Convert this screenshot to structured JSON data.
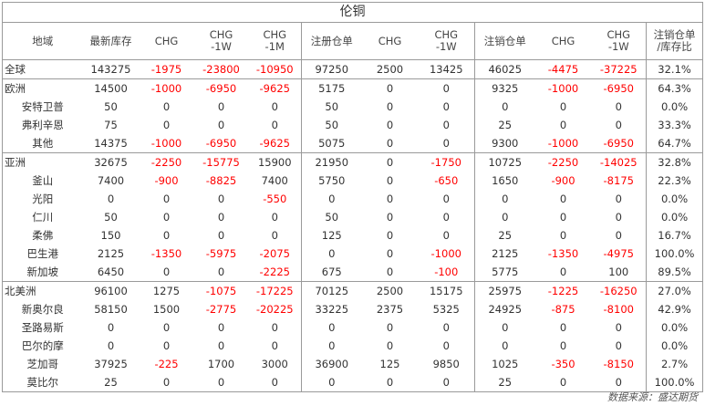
{
  "title": "伦铜",
  "columns": [
    "地域",
    "最新库存",
    "CHG",
    "CHG\n-1W",
    "CHG\n-1M",
    "注册仓单",
    "CHG",
    "CHG\n-1W",
    "注销仓单",
    "CHG",
    "CHG\n-1W",
    "注销仓单\n/库存比"
  ],
  "rows": [
    {
      "region": "全球",
      "sub": false,
      "group_start": true,
      "values": [
        "143275",
        "-1975",
        "-23800",
        "-10950",
        "97250",
        "2500",
        "13425",
        "46025",
        "-4475",
        "-37225",
        "32.1%"
      ]
    },
    {
      "region": "欧洲",
      "sub": false,
      "group_start": true,
      "values": [
        "14500",
        "-1000",
        "-6950",
        "-9625",
        "5175",
        "0",
        "0",
        "9325",
        "-1000",
        "-6950",
        "64.3%"
      ]
    },
    {
      "region": "安特卫普",
      "sub": true,
      "group_start": false,
      "values": [
        "50",
        "0",
        "0",
        "0",
        "50",
        "0",
        "0",
        "0",
        "0",
        "0",
        "0.0%"
      ]
    },
    {
      "region": "弗利辛恩",
      "sub": true,
      "group_start": false,
      "values": [
        "75",
        "0",
        "0",
        "0",
        "50",
        "0",
        "0",
        "25",
        "0",
        "0",
        "33.3%"
      ]
    },
    {
      "region": "其他",
      "sub": true,
      "group_start": false,
      "values": [
        "14375",
        "-1000",
        "-6950",
        "-9625",
        "5075",
        "0",
        "0",
        "9300",
        "-1000",
        "-6950",
        "64.7%"
      ]
    },
    {
      "region": "亚洲",
      "sub": false,
      "group_start": true,
      "values": [
        "32675",
        "-2250",
        "-15775",
        "15900",
        "21950",
        "0",
        "-1750",
        "10725",
        "-2250",
        "-14025",
        "32.8%"
      ]
    },
    {
      "region": "釜山",
      "sub": true,
      "group_start": false,
      "values": [
        "7400",
        "-900",
        "-8825",
        "7400",
        "5750",
        "0",
        "-650",
        "1650",
        "-900",
        "-8175",
        "22.3%"
      ]
    },
    {
      "region": "光阳",
      "sub": true,
      "group_start": false,
      "values": [
        "0",
        "0",
        "0",
        "-550",
        "0",
        "0",
        "0",
        "0",
        "0",
        "0",
        "0.0%"
      ]
    },
    {
      "region": "仁川",
      "sub": true,
      "group_start": false,
      "values": [
        "50",
        "0",
        "0",
        "0",
        "50",
        "0",
        "0",
        "0",
        "0",
        "0",
        "0.0%"
      ]
    },
    {
      "region": "柔佛",
      "sub": true,
      "group_start": false,
      "values": [
        "150",
        "0",
        "0",
        "0",
        "125",
        "0",
        "0",
        "25",
        "0",
        "0",
        "16.7%"
      ]
    },
    {
      "region": "巴生港",
      "sub": true,
      "group_start": false,
      "values": [
        "2125",
        "-1350",
        "-5975",
        "-2075",
        "0",
        "0",
        "-1000",
        "2125",
        "-1350",
        "-4975",
        "100.0%"
      ]
    },
    {
      "region": "新加坡",
      "sub": true,
      "group_start": false,
      "values": [
        "6450",
        "0",
        "0",
        "-2225",
        "675",
        "0",
        "-100",
        "5775",
        "0",
        "100",
        "89.5%"
      ]
    },
    {
      "region": "北美洲",
      "sub": false,
      "group_start": true,
      "values": [
        "96100",
        "1275",
        "-1075",
        "-17225",
        "70125",
        "2500",
        "15175",
        "25975",
        "-1225",
        "-16250",
        "27.0%"
      ]
    },
    {
      "region": "新奥尔良",
      "sub": true,
      "group_start": false,
      "values": [
        "58150",
        "1500",
        "-2775",
        "-20225",
        "33225",
        "2375",
        "5325",
        "24925",
        "-875",
        "-8100",
        "42.9%"
      ]
    },
    {
      "region": "圣路易斯",
      "sub": true,
      "group_start": false,
      "values": [
        "0",
        "0",
        "0",
        "0",
        "0",
        "0",
        "0",
        "0",
        "0",
        "0",
        "0.0%"
      ]
    },
    {
      "region": "巴尔的摩",
      "sub": true,
      "group_start": false,
      "values": [
        "0",
        "0",
        "0",
        "0",
        "0",
        "0",
        "0",
        "0",
        "0",
        "0",
        "0.0%"
      ]
    },
    {
      "region": "芝加哥",
      "sub": true,
      "group_start": false,
      "values": [
        "37925",
        "-225",
        "1700",
        "3000",
        "36900",
        "125",
        "9850",
        "1025",
        "-350",
        "-8150",
        "2.7%"
      ]
    },
    {
      "region": "莫比尔",
      "sub": true,
      "group_start": false,
      "values": [
        "25",
        "0",
        "0",
        "0",
        "0",
        "0",
        "0",
        "25",
        "0",
        "0",
        "100.0%"
      ]
    }
  ],
  "footer": "数据来源：盛达期货",
  "colors": {
    "negative": "#ff0000",
    "text": "#333333",
    "border": "#9a9a9a"
  }
}
